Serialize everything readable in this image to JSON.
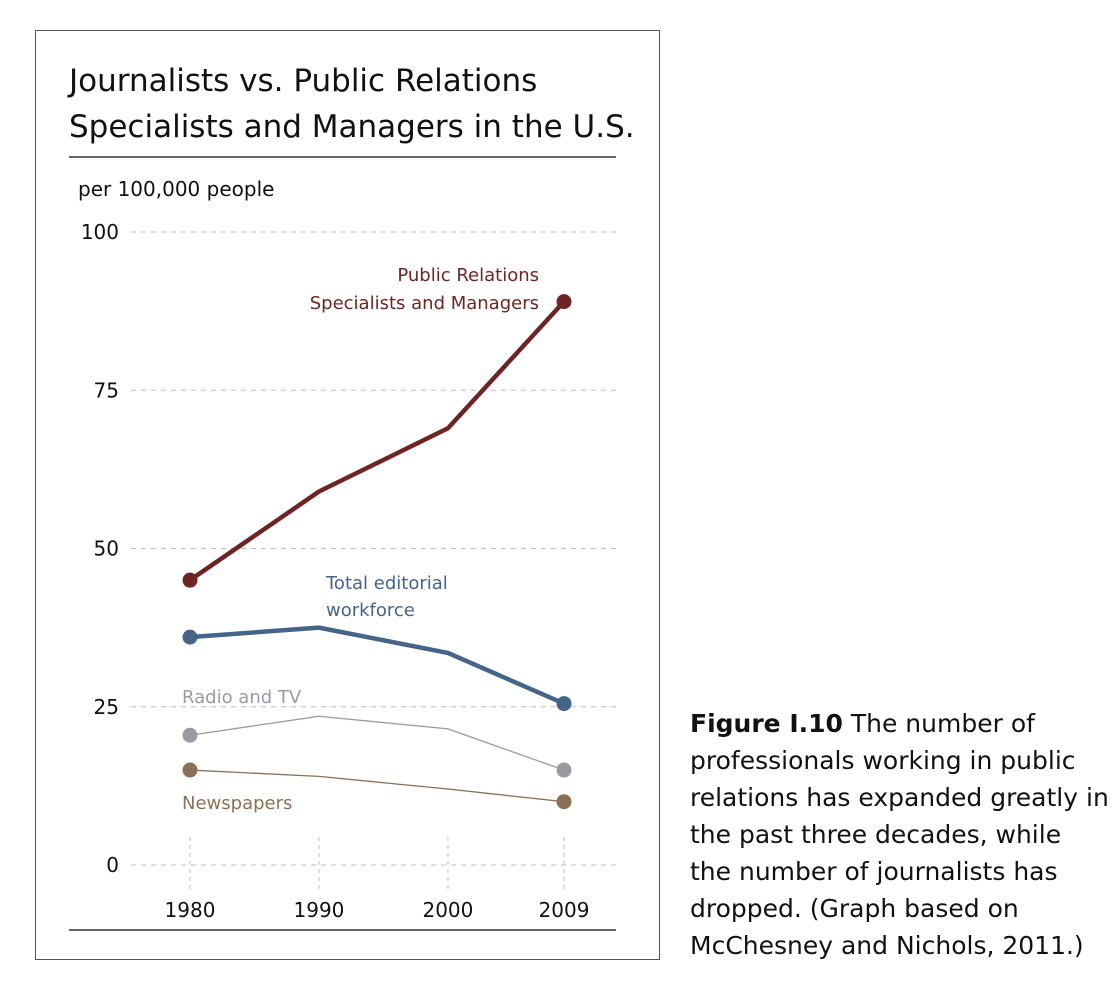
{
  "chart_data": {
    "type": "line",
    "title_lines": [
      "Journalists vs. Public Relations",
      "Specialists and Managers in the U.S."
    ],
    "ylabel": "per 100,000 people",
    "xlabel": "",
    "x": [
      "1980",
      "1990",
      "2000",
      "2009"
    ],
    "x_values": [
      1980,
      1990,
      2000,
      2009
    ],
    "ylim": [
      0,
      100
    ],
    "yticks": [
      "0",
      "25",
      "50",
      "75",
      "100"
    ],
    "ytick_values": [
      0,
      25,
      50,
      75,
      100
    ],
    "grid": "horizontal dashed",
    "series": [
      {
        "name_lines": [
          "Public Relations",
          "Specialists and Managers"
        ],
        "color": "#6e2424",
        "values": [
          45,
          59,
          69,
          89
        ]
      },
      {
        "name_lines": [
          "Total editorial",
          "workforce"
        ],
        "color": "#456489",
        "values": [
          36,
          37.5,
          33.5,
          25.5
        ]
      },
      {
        "name_lines": [
          "Radio and TV"
        ],
        "color": "#9a9aa3",
        "values": [
          20.5,
          23.5,
          21.5,
          15
        ]
      },
      {
        "name_lines": [
          "Newspapers"
        ],
        "color": "#8c7055",
        "values": [
          15,
          14,
          12,
          10
        ]
      }
    ]
  },
  "caption": {
    "figure_number": "Figure I.10",
    "text": " The number of professionals working in public relations has expanded greatly in the past three decades, while the number of journalists has dropped. (Graph based on McChesney and Nichols, 2011.)"
  }
}
